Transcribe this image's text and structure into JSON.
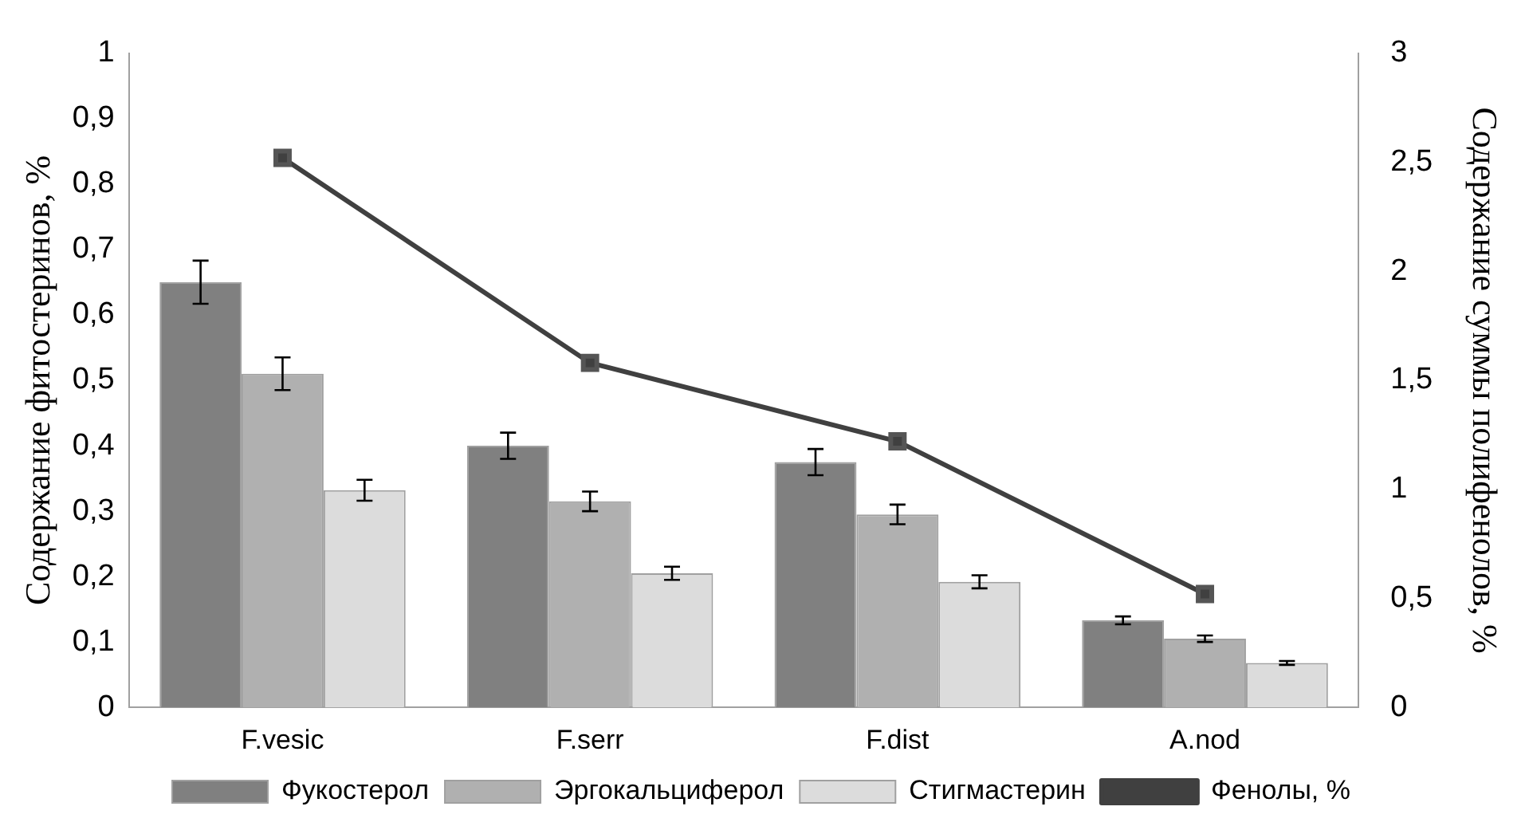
{
  "chart_data": {
    "type": "bar",
    "categories": [
      "F.vesic",
      "F.serr",
      "F.dist",
      "A.nod"
    ],
    "ylabel": "Содержание фитостеринов, %",
    "y2label": "Содержание суммы полифенолов, %",
    "series": [
      {
        "name": "Фукостерол",
        "color": "#808080",
        "values": [
          0.65,
          0.4,
          0.375,
          0.133
        ],
        "errors": [
          0.033,
          0.02,
          0.02,
          0.006
        ]
      },
      {
        "name": "Эргокальциферол",
        "color": "#b0b0b0",
        "values": [
          0.51,
          0.315,
          0.295,
          0.105
        ],
        "errors": [
          0.025,
          0.015,
          0.015,
          0.005
        ]
      },
      {
        "name": "Стигмастерин",
        "color": "#dcdcdc",
        "values": [
          0.332,
          0.205,
          0.192,
          0.068
        ],
        "errors": [
          0.016,
          0.01,
          0.01,
          0.003
        ]
      },
      {
        "name": "Фенолы, %",
        "type": "line",
        "axis": "y2",
        "color": "#404040",
        "marker": "square",
        "values": [
          2.52,
          1.58,
          1.22,
          0.52
        ]
      }
    ],
    "ylim": [
      0,
      1
    ],
    "yticks": [
      {
        "value": 0,
        "label": "0"
      },
      {
        "value": 0.1,
        "label": "0,1"
      },
      {
        "value": 0.2,
        "label": "0,2"
      },
      {
        "value": 0.3,
        "label": "0,3"
      },
      {
        "value": 0.4,
        "label": "0,4"
      },
      {
        "value": 0.5,
        "label": "0,5"
      },
      {
        "value": 0.6,
        "label": "0,6"
      },
      {
        "value": 0.7,
        "label": "0,7"
      },
      {
        "value": 0.8,
        "label": "0,8"
      },
      {
        "value": 0.9,
        "label": "0,9"
      },
      {
        "value": 1,
        "label": "1"
      }
    ],
    "y2lim": [
      0,
      3
    ],
    "y2ticks": [
      {
        "value": 0,
        "label": "0"
      },
      {
        "value": 0.5,
        "label": "0,5"
      },
      {
        "value": 1,
        "label": "1"
      },
      {
        "value": 1.5,
        "label": "1,5"
      },
      {
        "value": 2,
        "label": "2"
      },
      {
        "value": 2.5,
        "label": "2,5"
      },
      {
        "value": 3,
        "label": "3"
      }
    ],
    "grid": false,
    "legend": "bottom"
  }
}
